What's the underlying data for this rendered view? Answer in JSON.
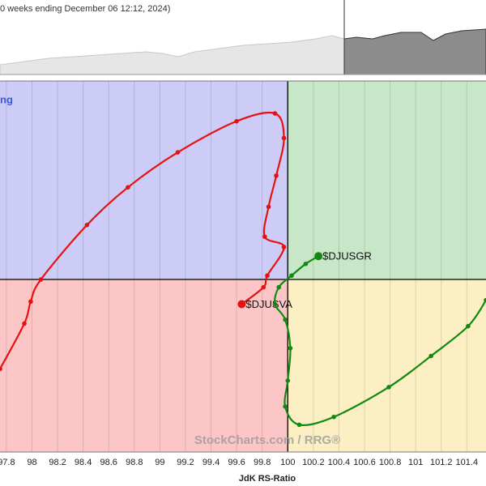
{
  "chart_data": {
    "type": "rrg",
    "subtitle": "0 weeks ending December 06 12:12, 2024)",
    "quadrant_label": "ng",
    "x_label": "JdK RS-Ratio",
    "watermark": "StockCharts.com / RRG®",
    "xlim": [
      97.75,
      101.55
    ],
    "ylim": [
      98.67,
      101.53
    ],
    "xticks": [
      97.8,
      98,
      98.2,
      98.4,
      98.6,
      98.8,
      99,
      99.2,
      99.4,
      99.6,
      99.8,
      100,
      100.2,
      100.4,
      100.6,
      100.8,
      101,
      101.2,
      101.4
    ],
    "grid": true,
    "series": [
      {
        "name": "$DJUSVA",
        "color": "#e81010",
        "x": [
          97.75,
          97.94,
          97.99,
          98.07,
          98.43,
          98.75,
          99.14,
          99.6,
          99.9,
          99.97,
          99.91,
          99.85,
          99.82,
          99.97,
          99.84,
          99.81,
          99.64
        ],
        "values": [
          99.31,
          99.66,
          99.83,
          100.0,
          100.42,
          100.71,
          100.98,
          101.22,
          101.28,
          101.09,
          100.8,
          100.56,
          100.33,
          100.25,
          100.03,
          99.94,
          99.81
        ]
      },
      {
        "name": "$DJUSGR",
        "color": "#128a12",
        "x": [
          101.55,
          101.41,
          101.12,
          100.79,
          100.36,
          100.09,
          99.98,
          100.0,
          100.02,
          99.98,
          99.9,
          99.93,
          100.03,
          100.14,
          100.24
        ],
        "values": [
          99.84,
          99.64,
          99.41,
          99.17,
          98.94,
          98.88,
          99.02,
          99.22,
          99.47,
          99.69,
          99.81,
          99.94,
          100.03,
          100.12,
          100.18
        ]
      }
    ]
  }
}
